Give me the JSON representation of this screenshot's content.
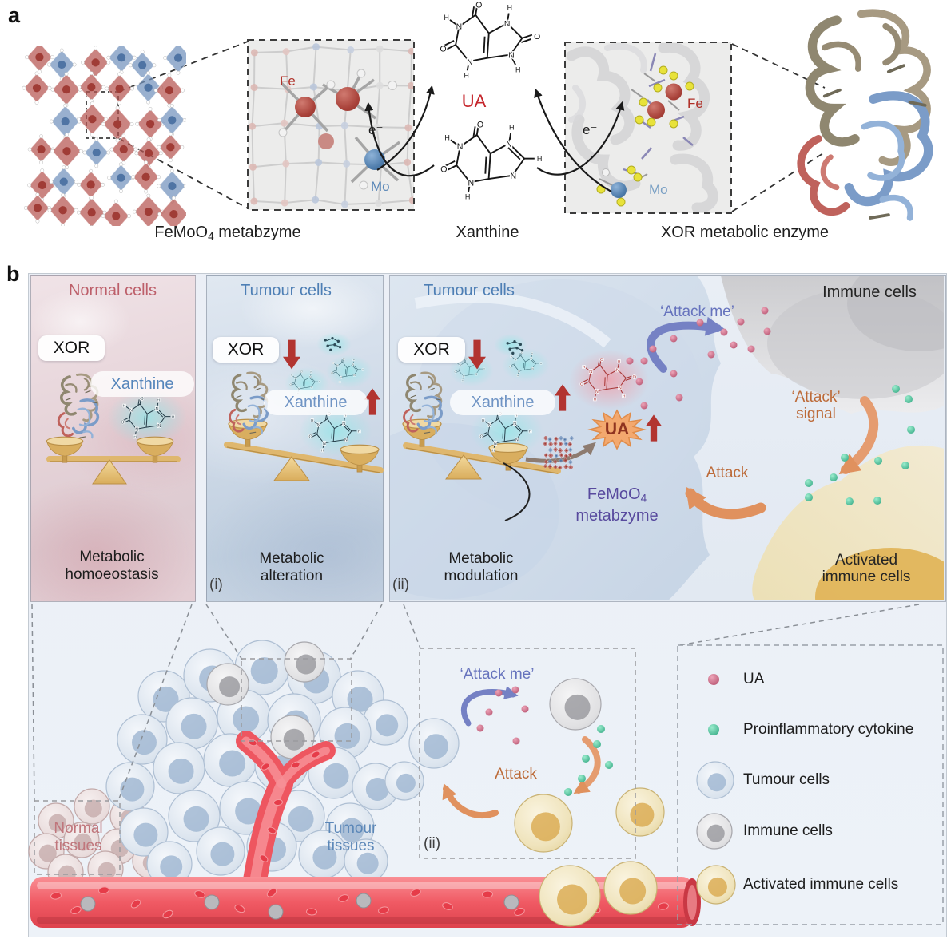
{
  "figure": {
    "panel_a": {
      "label": "a",
      "fe": "Fe",
      "mo": "Mo",
      "electron": "e⁻",
      "ua": "UA",
      "xanthine_caption": "Xanthine",
      "crystal_caption": {
        "pre": "FeMoO",
        "sub": "4",
        "post": " metabzyme"
      },
      "xor_caption": "XOR metabolic enzyme"
    },
    "panel_b": {
      "label": "b",
      "normal_panel": {
        "title": "Normal cells",
        "xor": "XOR",
        "xanthine": "Xanthine",
        "caption_line1": "Metabolic",
        "caption_line2": "homoeostasis"
      },
      "tumour_panel_i": {
        "title": "Tumour cells",
        "xor": "XOR",
        "xanthine": "Xanthine",
        "caption_line1": "Metabolic",
        "caption_line2": "alteration",
        "index": "(i)"
      },
      "tumour_panel_ii": {
        "title": "Tumour cells",
        "xor": "XOR",
        "xanthine": "Xanthine",
        "caption_line1": "Metabolic",
        "caption_line2": "modulation",
        "index": "(ii)",
        "ua": "UA",
        "femoo4": {
          "pre": "FeMoO",
          "sub": "4",
          "line2": "metabzyme"
        }
      },
      "immune_cells": "Immune cells",
      "attack_me": "‘Attack me’",
      "attack_signal_line1": "‘Attack’",
      "attack_signal_line2": "signal",
      "attack": "Attack",
      "activated_line1": "Activated",
      "activated_line2": "immune cells"
    },
    "bottom": {
      "normal_tissues_line1": "Normal",
      "normal_tissues_line2": "tissues",
      "tumour_tissues_line1": "Tumour",
      "tumour_tissues_line2": "tissues",
      "inset_index": "(ii)",
      "attack_me": "‘Attack me’",
      "attack": "Attack",
      "legend": [
        {
          "icon": "ua-dot",
          "label": "UA"
        },
        {
          "icon": "cytokine-dot",
          "label": "Proinflammatory cytokine"
        },
        {
          "icon": "tumour-cell",
          "label": "Tumour cells"
        },
        {
          "icon": "immune-cell",
          "label": "Immune cells"
        },
        {
          "icon": "activated-immune-cell",
          "label": "Activated immune cells"
        }
      ]
    },
    "colors": {
      "normal_cells_red": "#bd5f6a",
      "tumour_cells_blue": "#4e7fb5",
      "arrow_red": "#b23430",
      "attack_orange": "#bc6a38",
      "attack_me_purple": "#6673bd",
      "femoo4_purple": "#584a9e",
      "ua_red": "#c5262c",
      "fe_red": "#b03028",
      "mo_blue": "#5b88b8",
      "scale_gold": "#ddb266",
      "cytokine_green": "#45c39c",
      "ua_dot_pink": "#c96a85"
    }
  }
}
